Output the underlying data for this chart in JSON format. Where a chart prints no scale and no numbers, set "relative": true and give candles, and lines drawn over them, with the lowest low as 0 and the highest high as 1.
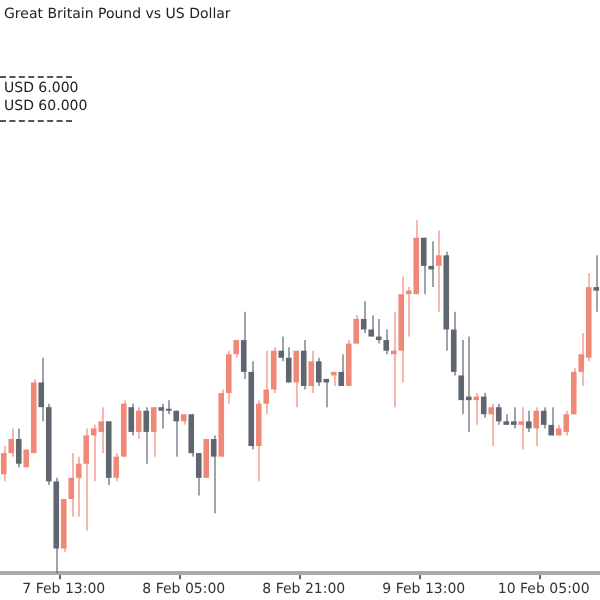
{
  "chart_data": {
    "type": "candlestick",
    "relative": true,
    "title": "Great Britain Pound vs US Dollar",
    "annotations": [
      "USD 6.000",
      "USD 60.000"
    ],
    "categories": [
      null,
      null,
      null,
      null,
      null,
      null,
      null,
      null,
      "7 Feb 13:00",
      null,
      null,
      null,
      null,
      null,
      null,
      null,
      null,
      null,
      null,
      null,
      null,
      null,
      null,
      null,
      "8 Feb 05:00",
      null,
      null,
      null,
      null,
      null,
      null,
      null,
      null,
      null,
      null,
      null,
      null,
      null,
      null,
      null,
      "8 Feb 21:00",
      null,
      null,
      null,
      null,
      null,
      null,
      null,
      null,
      null,
      null,
      null,
      null,
      null,
      null,
      null,
      "9 Feb 13:00",
      null,
      null,
      null,
      null,
      null,
      null,
      null,
      null,
      null,
      null,
      null,
      null,
      null,
      null,
      null,
      "10 Feb 05:00",
      null,
      null,
      null,
      null,
      null,
      null,
      null
    ],
    "ohlc": [
      [
        0.28,
        0.36,
        0.26,
        0.34
      ],
      [
        0.34,
        0.41,
        0.33,
        0.38
      ],
      [
        0.38,
        0.41,
        0.3,
        0.31
      ],
      [
        0.3,
        0.35,
        0.3,
        0.35
      ],
      [
        0.34,
        0.55,
        0.34,
        0.54
      ],
      [
        0.54,
        0.61,
        0.43,
        0.47
      ],
      [
        0.47,
        0.48,
        0.25,
        0.26
      ],
      [
        0.26,
        0.27,
        0,
        0.07
      ],
      [
        0.07,
        0.21,
        0.06,
        0.21
      ],
      [
        0.21,
        0.34,
        0.16,
        0.27
      ],
      [
        0.27,
        0.33,
        0.16,
        0.31
      ],
      [
        0.31,
        0.41,
        0.12,
        0.39
      ],
      [
        0.39,
        0.42,
        0.26,
        0.41
      ],
      [
        0.4,
        0.47,
        0.34,
        0.43
      ],
      [
        0.43,
        0.43,
        0.25,
        0.27
      ],
      [
        0.27,
        0.34,
        0.26,
        0.33
      ],
      [
        0.33,
        0.49,
        0.33,
        0.48
      ],
      [
        0.47,
        0.48,
        0.39,
        0.4
      ],
      [
        0.4,
        0.47,
        0.38,
        0.46
      ],
      [
        0.46,
        0.47,
        0.31,
        0.4
      ],
      [
        0.4,
        0.47,
        0.33,
        0.47
      ],
      [
        0.47,
        0.48,
        0.41,
        0.46
      ],
      [
        0.46,
        0.49,
        0.45,
        0.46
      ],
      [
        0.46,
        0.46,
        0.33,
        0.43
      ],
      [
        0.43,
        0.45,
        0.42,
        0.45
      ],
      [
        0.45,
        0.45,
        0.33,
        0.34
      ],
      [
        0.34,
        0.34,
        0.22,
        0.27
      ],
      [
        0.27,
        0.38,
        0.27,
        0.38
      ],
      [
        0.38,
        0.39,
        0.17,
        0.33
      ],
      [
        0.33,
        0.52,
        0.33,
        0.51
      ],
      [
        0.51,
        0.63,
        0.48,
        0.62
      ],
      [
        0.62,
        0.66,
        0.61,
        0.66
      ],
      [
        0.66,
        0.74,
        0.55,
        0.57
      ],
      [
        0.57,
        0.6,
        0.35,
        0.36
      ],
      [
        0.36,
        0.49,
        0.26,
        0.48
      ],
      [
        0.48,
        0.63,
        0.45,
        0.52
      ],
      [
        0.52,
        0.64,
        0.51,
        0.63
      ],
      [
        0.63,
        0.67,
        0.6,
        0.61
      ],
      [
        0.61,
        0.64,
        0.54,
        0.54
      ],
      [
        0.54,
        0.63,
        0.47,
        0.63
      ],
      [
        0.63,
        0.66,
        0.52,
        0.53
      ],
      [
        0.53,
        0.63,
        0.51,
        0.6
      ],
      [
        0.6,
        0.61,
        0.53,
        0.54
      ],
      [
        0.55,
        0.55,
        0.47,
        0.54
      ],
      [
        0.56,
        0.57,
        0.53,
        0.57
      ],
      [
        0.57,
        0.62,
        0.53,
        0.53
      ],
      [
        0.53,
        0.66,
        0.53,
        0.65
      ],
      [
        0.65,
        0.73,
        0.65,
        0.72
      ],
      [
        0.72,
        0.77,
        0.68,
        0.69
      ],
      [
        0.69,
        0.73,
        0.67,
        0.67
      ],
      [
        0.67,
        0.72,
        0.65,
        0.66
      ],
      [
        0.66,
        0.69,
        0.62,
        0.63
      ],
      [
        0.62,
        0.74,
        0.47,
        0.63
      ],
      [
        0.63,
        0.84,
        0.54,
        0.79
      ],
      [
        0.79,
        0.81,
        0.67,
        0.8
      ],
      [
        0.79,
        1,
        0.79,
        0.95
      ],
      [
        0.95,
        0.95,
        0.79,
        0.87
      ],
      [
        0.87,
        0.94,
        0.81,
        0.86
      ],
      [
        0.87,
        0.97,
        0.74,
        0.9
      ],
      [
        0.9,
        0.91,
        0.63,
        0.69
      ],
      [
        0.69,
        0.74,
        0.56,
        0.57
      ],
      [
        0.56,
        0.66,
        0.45,
        0.49
      ],
      [
        0.5,
        0.67,
        0.4,
        0.49
      ],
      [
        0.49,
        0.51,
        0.42,
        0.5
      ],
      [
        0.5,
        0.51,
        0.44,
        0.45
      ],
      [
        0.45,
        0.48,
        0.36,
        0.47
      ],
      [
        0.47,
        0.48,
        0.42,
        0.43
      ],
      [
        0.43,
        0.45,
        0.42,
        0.42
      ],
      [
        0.43,
        0.47,
        0.41,
        0.42
      ],
      [
        0.42,
        0.47,
        0.35,
        0.43
      ],
      [
        0.43,
        0.46,
        0.4,
        0.41
      ],
      [
        0.41,
        0.47,
        0.36,
        0.46
      ],
      [
        0.46,
        0.47,
        0.41,
        0.42
      ],
      [
        0.42,
        0.47,
        0.39,
        0.39
      ],
      [
        0.39,
        0.42,
        0.39,
        0.41
      ],
      [
        0.4,
        0.46,
        0.39,
        0.45
      ],
      [
        0.45,
        0.58,
        0.45,
        0.57
      ],
      [
        0.57,
        0.68,
        0.53,
        0.62
      ],
      [
        0.61,
        0.85,
        0.6,
        0.81
      ],
      [
        0.81,
        0.9,
        0.74,
        0.8
      ]
    ],
    "colors": [
      "#f08878",
      "#f08878",
      "#5f6670",
      "#f08878",
      "#f08878",
      "#5f6670",
      "#5f6670",
      "#5f6670",
      "#f08878",
      "#f08878",
      "#f08878",
      "#f08878",
      "#f08878",
      "#f08878",
      "#5f6670",
      "#f08878",
      "#f08878",
      "#5f6670",
      "#f08878",
      "#5f6670",
      "#f08878",
      "#5f6670",
      "#5f6670",
      "#5f6670",
      "#f08878",
      "#5f6670",
      "#5f6670",
      "#f08878",
      "#5f6670",
      "#f08878",
      "#f08878",
      "#f08878",
      "#5f6670",
      "#5f6670",
      "#f08878",
      "#f08878",
      "#f08878",
      "#5f6670",
      "#5f6670",
      "#f08878",
      "#5f6670",
      "#f08878",
      "#5f6670",
      "#5f6670",
      "#f08878",
      "#5f6670",
      "#f08878",
      "#f08878",
      "#5f6670",
      "#5f6670",
      "#5f6670",
      "#5f6670",
      "#f08878",
      "#f08878",
      "#f08878",
      "#f08878",
      "#5f6670",
      "#5f6670",
      "#f08878",
      "#5f6670",
      "#5f6670",
      "#5f6670",
      "#5f6670",
      "#f08878",
      "#5f6670",
      "#f08878",
      "#5f6670",
      "#5f6670",
      "#5f6670",
      "#f08878",
      "#5f6670",
      "#f08878",
      "#5f6670",
      "#5f6670",
      "#f08878",
      "#f08878",
      "#f08878",
      "#f08878",
      "#f08878",
      "#5f6670"
    ]
  }
}
